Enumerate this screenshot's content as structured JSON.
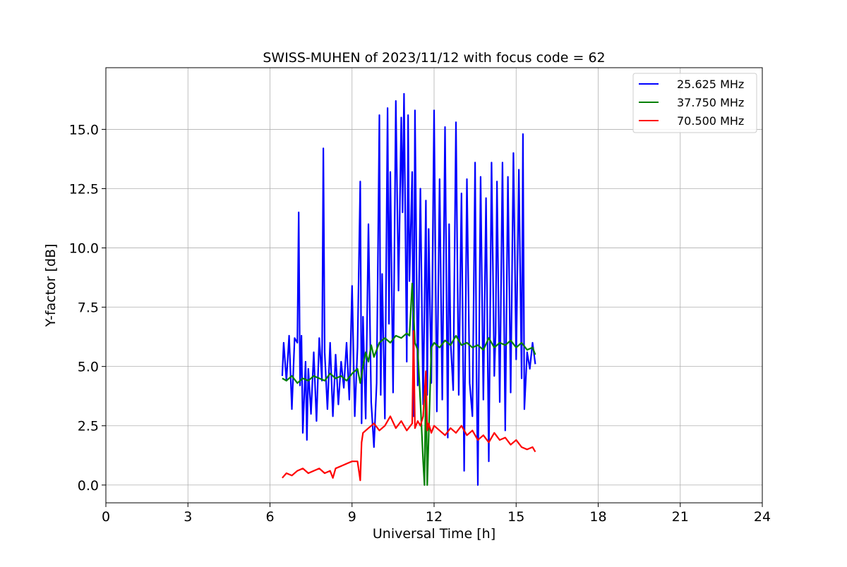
{
  "chart_data": {
    "type": "line",
    "title": "SWISS-MUHEN of 2023/11/12 with focus code = 62",
    "xlabel": "Universal Time [h]",
    "ylabel": "Y-factor [dB]",
    "xlim": [
      0,
      24
    ],
    "ylim": [
      -0.75,
      17.6
    ],
    "x_ticks": [
      0,
      3,
      6,
      9,
      12,
      15,
      18,
      21,
      24
    ],
    "x_tick_labels": [
      "0",
      "3",
      "6",
      "9",
      "12",
      "15",
      "18",
      "21",
      "24"
    ],
    "y_ticks": [
      0,
      2.5,
      5,
      7.5,
      10,
      12.5,
      15
    ],
    "y_tick_labels": [
      "0.0",
      "2.5",
      "5.0",
      "7.5",
      "10.0",
      "12.5",
      "15.0"
    ],
    "grid": true,
    "legend_position": "top-right",
    "series": [
      {
        "name": "25.625 MHz",
        "color": "#0000ff",
        "x": [
          6.45,
          6.5,
          6.6,
          6.7,
          6.8,
          6.9,
          7.0,
          7.05,
          7.1,
          7.15,
          7.2,
          7.3,
          7.35,
          7.4,
          7.5,
          7.6,
          7.7,
          7.8,
          7.9,
          7.95,
          8.0,
          8.1,
          8.2,
          8.3,
          8.4,
          8.5,
          8.6,
          8.7,
          8.8,
          8.9,
          9.0,
          9.1,
          9.2,
          9.3,
          9.35,
          9.4,
          9.5,
          9.6,
          9.7,
          9.8,
          9.9,
          10.0,
          10.05,
          10.1,
          10.2,
          10.3,
          10.35,
          10.4,
          10.5,
          10.6,
          10.7,
          10.8,
          10.85,
          10.9,
          11.0,
          11.05,
          11.1,
          11.2,
          11.25,
          11.3,
          11.4,
          11.5,
          11.6,
          11.7,
          11.75,
          11.8,
          11.9,
          12.0,
          12.1,
          12.2,
          12.3,
          12.4,
          12.5,
          12.55,
          12.6,
          12.7,
          12.8,
          12.9,
          13.0,
          13.1,
          13.2,
          13.3,
          13.4,
          13.5,
          13.55,
          13.6,
          13.7,
          13.8,
          13.9,
          14.0,
          14.1,
          14.2,
          14.25,
          14.3,
          14.4,
          14.5,
          14.6,
          14.7,
          14.8,
          14.9,
          15.0,
          15.1,
          15.2,
          15.25,
          15.3,
          15.4,
          15.5,
          15.6,
          15.7
        ],
        "y": [
          4.6,
          6.0,
          4.4,
          6.3,
          3.2,
          6.2,
          6.0,
          11.5,
          4.2,
          6.3,
          2.2,
          5.2,
          1.9,
          4.9,
          3.0,
          5.6,
          2.7,
          6.2,
          4.4,
          14.2,
          5.6,
          3.2,
          6.0,
          2.9,
          5.5,
          3.4,
          5.2,
          4.1,
          6.0,
          3.6,
          8.4,
          2.9,
          5.8,
          12.8,
          2.6,
          7.1,
          2.8,
          11.0,
          3.5,
          1.6,
          4.3,
          15.6,
          3.8,
          8.9,
          2.8,
          15.9,
          6.8,
          13.2,
          3.9,
          16.2,
          8.2,
          15.5,
          11.5,
          16.5,
          5.2,
          15.6,
          8.6,
          13.2,
          2.9,
          15.8,
          4.2,
          12.5,
          3.4,
          12.0,
          3.8,
          10.8,
          4.3,
          15.8,
          3.1,
          12.9,
          3.6,
          15.1,
          2.0,
          11.0,
          6.1,
          4.0,
          15.3,
          3.8,
          12.3,
          0.6,
          12.9,
          4.3,
          2.9,
          13.6,
          4.8,
          0.0,
          13.0,
          3.6,
          12.1,
          1.0,
          13.6,
          4.6,
          6.4,
          12.8,
          3.5,
          13.6,
          2.3,
          13.0,
          3.9,
          14.0,
          5.3,
          13.3,
          4.5,
          14.8,
          3.2,
          5.6,
          4.9,
          6.0,
          5.1
        ]
      },
      {
        "name": "37.750 MHz",
        "color": "#008000",
        "x": [
          6.45,
          6.6,
          6.8,
          7.0,
          7.2,
          7.4,
          7.6,
          7.8,
          8.0,
          8.2,
          8.4,
          8.6,
          8.8,
          9.0,
          9.2,
          9.3,
          9.4,
          9.5,
          9.6,
          9.7,
          9.8,
          10.0,
          10.2,
          10.4,
          10.6,
          10.8,
          11.0,
          11.1,
          11.2,
          11.3,
          11.4,
          11.5,
          11.6,
          11.65,
          11.7,
          11.75,
          11.8,
          11.9,
          12.0,
          12.2,
          12.4,
          12.6,
          12.8,
          13.0,
          13.2,
          13.4,
          13.6,
          13.8,
          14.0,
          14.2,
          14.4,
          14.6,
          14.8,
          15.0,
          15.2,
          15.4,
          15.6,
          15.7
        ],
        "y": [
          4.5,
          4.4,
          4.6,
          4.3,
          4.5,
          4.4,
          4.6,
          4.5,
          4.4,
          4.7,
          4.5,
          4.6,
          4.4,
          4.7,
          4.9,
          4.3,
          5.0,
          5.6,
          5.2,
          5.9,
          5.4,
          6.0,
          6.2,
          6.0,
          6.3,
          6.2,
          6.4,
          6.3,
          8.5,
          6.0,
          5.7,
          3.5,
          1.0,
          0.0,
          4.6,
          0.0,
          2.0,
          5.8,
          6.0,
          5.8,
          6.1,
          5.9,
          6.3,
          5.9,
          6.0,
          5.8,
          5.9,
          5.7,
          6.2,
          5.8,
          6.0,
          5.9,
          6.1,
          5.8,
          6.0,
          5.7,
          5.8,
          5.5
        ]
      },
      {
        "name": "70.500 MHz",
        "color": "#ff0000",
        "x": [
          6.45,
          6.6,
          6.8,
          7.0,
          7.2,
          7.4,
          7.6,
          7.8,
          8.0,
          8.2,
          8.3,
          8.4,
          8.6,
          8.8,
          9.0,
          9.2,
          9.3,
          9.35,
          9.4,
          9.6,
          9.8,
          10.0,
          10.2,
          10.4,
          10.6,
          10.8,
          11.0,
          11.2,
          11.25,
          11.3,
          11.4,
          11.5,
          11.6,
          11.7,
          11.75,
          11.8,
          11.9,
          12.0,
          12.2,
          12.4,
          12.6,
          12.8,
          13.0,
          13.2,
          13.4,
          13.6,
          13.8,
          14.0,
          14.2,
          14.4,
          14.6,
          14.8,
          15.0,
          15.2,
          15.4,
          15.6,
          15.7
        ],
        "y": [
          0.3,
          0.5,
          0.4,
          0.6,
          0.7,
          0.5,
          0.6,
          0.7,
          0.5,
          0.6,
          0.3,
          0.7,
          0.8,
          0.9,
          1.0,
          1.0,
          0.2,
          1.8,
          2.2,
          2.4,
          2.6,
          2.3,
          2.5,
          2.9,
          2.4,
          2.7,
          2.3,
          2.6,
          6.5,
          2.4,
          2.7,
          2.5,
          2.9,
          4.8,
          2.3,
          2.6,
          2.2,
          2.5,
          2.3,
          2.1,
          2.4,
          2.2,
          2.5,
          2.1,
          2.3,
          1.9,
          2.1,
          1.8,
          2.2,
          1.9,
          2.0,
          1.7,
          1.9,
          1.6,
          1.5,
          1.6,
          1.4
        ]
      }
    ]
  }
}
